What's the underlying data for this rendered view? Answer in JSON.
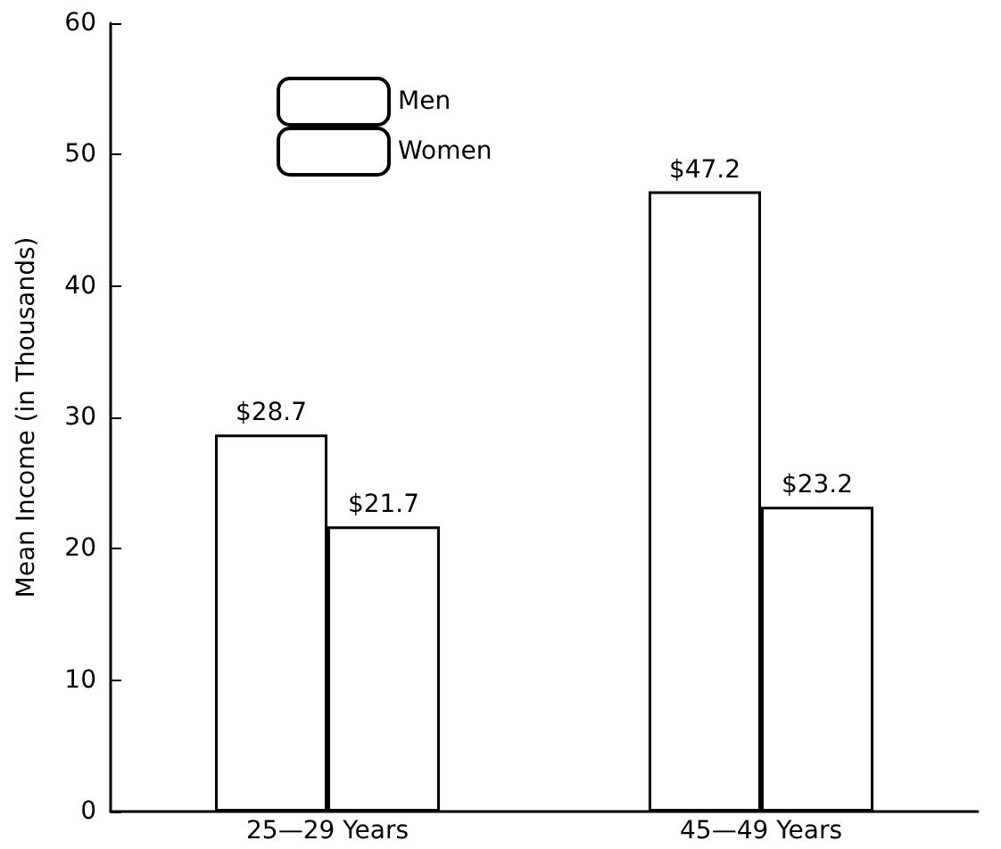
{
  "chart_data": {
    "type": "bar",
    "ylabel": "Mean Income (in Thousands)",
    "categories": [
      "25—29 Years",
      "45—49 Years"
    ],
    "series": [
      {
        "name": "Men",
        "color": "#ffffff",
        "values": [
          28.7,
          47.2
        ],
        "value_labels": [
          "$28.7",
          "$47.2"
        ]
      },
      {
        "name": "Women",
        "color": "#ffffff",
        "values": [
          21.7,
          23.2
        ],
        "value_labels": [
          "$21.7",
          "$23.2"
        ]
      }
    ],
    "ylim": [
      0,
      60
    ],
    "yticks": [
      0,
      10,
      20,
      30,
      40,
      50,
      60
    ],
    "grid": false,
    "legend": "top left"
  }
}
